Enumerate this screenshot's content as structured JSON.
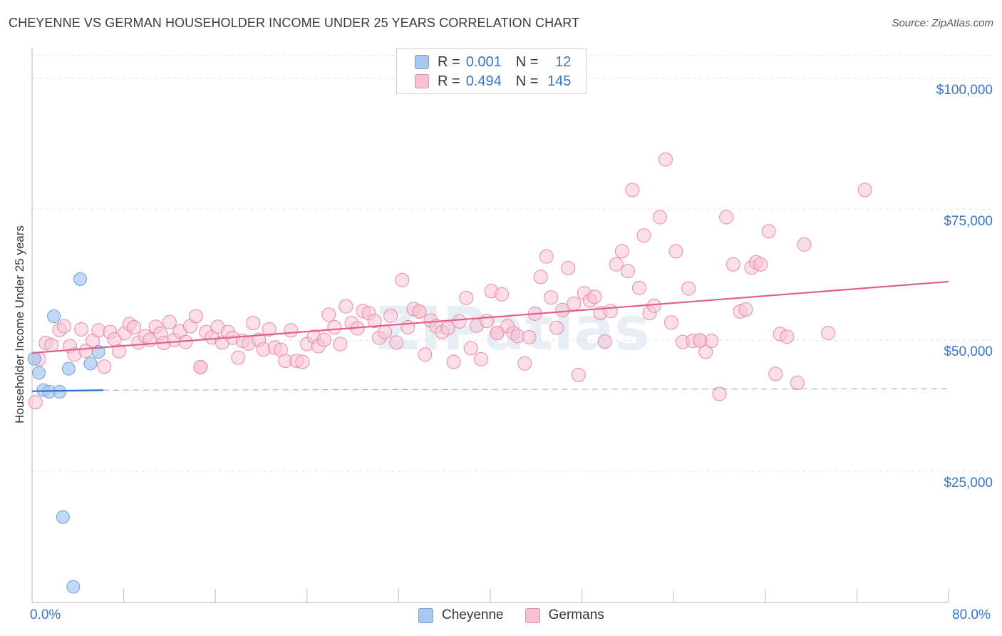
{
  "title": "CHEYENNE VS GERMAN HOUSEHOLDER INCOME UNDER 25 YEARS CORRELATION CHART",
  "source": "Source: ZipAtlas.com",
  "watermark": "ZIPatlas",
  "legend": {
    "rows": [
      {
        "r_label": "R =",
        "r_value": "0.001",
        "n_label": "N =",
        "n_value": "12"
      },
      {
        "r_label": "R =",
        "r_value": "0.494",
        "n_label": "N =",
        "n_value": "145"
      }
    ],
    "series_names": [
      "Cheyenne",
      "Germans"
    ]
  },
  "colors": {
    "cheyenne_fill": "#aac8f0",
    "cheyenne_stroke": "#6e9fdc",
    "cheyenne_line": "#2a6fcb",
    "german_fill": "#f8c2d3",
    "german_stroke": "#e98aa9",
    "german_line": "#e0608a",
    "axis_text": "#3a74c8",
    "grid": "#e4e4e4"
  },
  "chart_data": {
    "type": "scatter",
    "title": "CHEYENNE VS GERMAN HOUSEHOLDER INCOME UNDER 25 YEARS CORRELATION CHART",
    "xlabel": "",
    "ylabel": "Householder Income Under 25 years",
    "xlim": [
      0,
      80
    ],
    "ylim": [
      0,
      105000
    ],
    "x_tick_labels": [
      "0.0%",
      "80.0%"
    ],
    "y_ticks": [
      25000,
      50000,
      75000,
      100000
    ],
    "y_tick_labels": [
      "$25,000",
      "$50,000",
      "$75,000",
      "$100,000"
    ],
    "grid": true,
    "legend_position": "top-center",
    "series": [
      {
        "name": "Cheyenne",
        "r": 0.001,
        "n": 12,
        "trend": {
          "x0": 0,
          "y0": 40300,
          "x1": 6.2,
          "y1": 40500,
          "dashed_to_x": 80,
          "dashed_y1": 40800
        },
        "points": [
          [
            0.2,
            46500
          ],
          [
            0.6,
            43800
          ],
          [
            1.0,
            40500
          ],
          [
            1.5,
            40200
          ],
          [
            1.9,
            54600
          ],
          [
            2.4,
            40200
          ],
          [
            2.7,
            16300
          ],
          [
            3.2,
            44600
          ],
          [
            3.6,
            3000
          ],
          [
            4.2,
            61700
          ],
          [
            5.1,
            45600
          ],
          [
            5.8,
            47800
          ]
        ]
      },
      {
        "name": "Germans",
        "r": 0.494,
        "n": 145,
        "trend": {
          "x0": 0,
          "y0": 47600,
          "x1": 80,
          "y1": 61200
        },
        "points": [
          [
            0.3,
            38200
          ],
          [
            0.6,
            46400
          ],
          [
            1.2,
            49500
          ],
          [
            1.7,
            49100
          ],
          [
            2.4,
            52000
          ],
          [
            2.8,
            52700
          ],
          [
            3.3,
            48900
          ],
          [
            3.7,
            47300
          ],
          [
            4.3,
            52100
          ],
          [
            4.7,
            48000
          ],
          [
            5.3,
            49900
          ],
          [
            5.8,
            51900
          ],
          [
            6.3,
            45000
          ],
          [
            6.8,
            51600
          ],
          [
            7.2,
            50200
          ],
          [
            7.6,
            47900
          ],
          [
            8.1,
            51400
          ],
          [
            8.5,
            53100
          ],
          [
            8.9,
            52500
          ],
          [
            9.3,
            49600
          ],
          [
            9.9,
            50800
          ],
          [
            10.3,
            50100
          ],
          [
            10.8,
            52600
          ],
          [
            11.2,
            51300
          ],
          [
            11.5,
            49500
          ],
          [
            12.0,
            53500
          ],
          [
            12.4,
            50100
          ],
          [
            12.9,
            51700
          ],
          [
            13.4,
            49700
          ],
          [
            13.8,
            52700
          ],
          [
            14.3,
            54600
          ],
          [
            14.7,
            44900
          ],
          [
            15.2,
            51600
          ],
          [
            15.7,
            50600
          ],
          [
            16.2,
            52600
          ],
          [
            16.6,
            49600
          ],
          [
            17.1,
            51600
          ],
          [
            17.5,
            50500
          ],
          [
            18.0,
            46700
          ],
          [
            18.4,
            49900
          ],
          [
            18.9,
            49400
          ],
          [
            19.3,
            53300
          ],
          [
            19.8,
            50100
          ],
          [
            20.2,
            48300
          ],
          [
            20.7,
            52100
          ],
          [
            21.2,
            48600
          ],
          [
            21.7,
            48200
          ],
          [
            22.1,
            46100
          ],
          [
            22.6,
            51900
          ],
          [
            23.1,
            46100
          ],
          [
            23.6,
            45900
          ],
          [
            24.0,
            49300
          ],
          [
            24.6,
            50700
          ],
          [
            25.0,
            48900
          ],
          [
            25.5,
            50100
          ],
          [
            25.9,
            54900
          ],
          [
            26.4,
            52500
          ],
          [
            26.9,
            49300
          ],
          [
            27.4,
            56500
          ],
          [
            27.9,
            53300
          ],
          [
            28.4,
            52300
          ],
          [
            28.9,
            55600
          ],
          [
            29.4,
            55200
          ],
          [
            29.9,
            53700
          ],
          [
            30.3,
            50500
          ],
          [
            30.8,
            51600
          ],
          [
            31.3,
            54700
          ],
          [
            31.8,
            49600
          ],
          [
            32.3,
            61500
          ],
          [
            32.8,
            52500
          ],
          [
            33.3,
            56000
          ],
          [
            33.8,
            55500
          ],
          [
            34.3,
            47300
          ],
          [
            34.8,
            53800
          ],
          [
            35.3,
            52700
          ],
          [
            35.8,
            51600
          ],
          [
            36.3,
            52300
          ],
          [
            36.8,
            45900
          ],
          [
            37.3,
            53600
          ],
          [
            37.9,
            58100
          ],
          [
            38.3,
            48500
          ],
          [
            38.8,
            52800
          ],
          [
            39.2,
            46400
          ],
          [
            39.7,
            53700
          ],
          [
            40.1,
            59400
          ],
          [
            40.6,
            51400
          ],
          [
            41.0,
            58800
          ],
          [
            41.5,
            52700
          ],
          [
            42.0,
            51400
          ],
          [
            42.4,
            50800
          ],
          [
            43.0,
            45600
          ],
          [
            43.4,
            50600
          ],
          [
            43.9,
            55100
          ],
          [
            44.4,
            62100
          ],
          [
            44.9,
            66000
          ],
          [
            45.3,
            58200
          ],
          [
            45.8,
            52400
          ],
          [
            46.3,
            55800
          ],
          [
            46.8,
            63800
          ],
          [
            47.3,
            57000
          ],
          [
            47.7,
            43400
          ],
          [
            48.2,
            59000
          ],
          [
            48.7,
            57600
          ],
          [
            49.1,
            58300
          ],
          [
            49.6,
            55200
          ],
          [
            50.0,
            49800
          ],
          [
            50.5,
            55600
          ],
          [
            51.0,
            64500
          ],
          [
            51.5,
            67000
          ],
          [
            52.0,
            63200
          ],
          [
            52.4,
            78700
          ],
          [
            53.0,
            60000
          ],
          [
            53.4,
            70000
          ],
          [
            53.9,
            55200
          ],
          [
            54.3,
            56600
          ],
          [
            54.8,
            73500
          ],
          [
            55.3,
            84500
          ],
          [
            55.8,
            53400
          ],
          [
            56.2,
            67000
          ],
          [
            56.8,
            49700
          ],
          [
            57.3,
            59900
          ],
          [
            57.7,
            49900
          ],
          [
            58.3,
            50000
          ],
          [
            58.8,
            47800
          ],
          [
            59.3,
            49900
          ],
          [
            60.0,
            39800
          ],
          [
            60.6,
            73500
          ],
          [
            61.2,
            64500
          ],
          [
            61.8,
            55500
          ],
          [
            62.3,
            55900
          ],
          [
            62.8,
            63900
          ],
          [
            63.2,
            64900
          ],
          [
            63.6,
            64500
          ],
          [
            64.3,
            70800
          ],
          [
            64.9,
            43600
          ],
          [
            65.3,
            51200
          ],
          [
            65.9,
            50700
          ],
          [
            66.8,
            41900
          ],
          [
            67.4,
            68300
          ],
          [
            69.5,
            51400
          ],
          [
            72.7,
            78700
          ],
          [
            14.7,
            44900
          ],
          [
            33.8,
            55500
          ],
          [
            40.6,
            51400
          ],
          [
            58.3,
            50000
          ]
        ]
      }
    ]
  }
}
